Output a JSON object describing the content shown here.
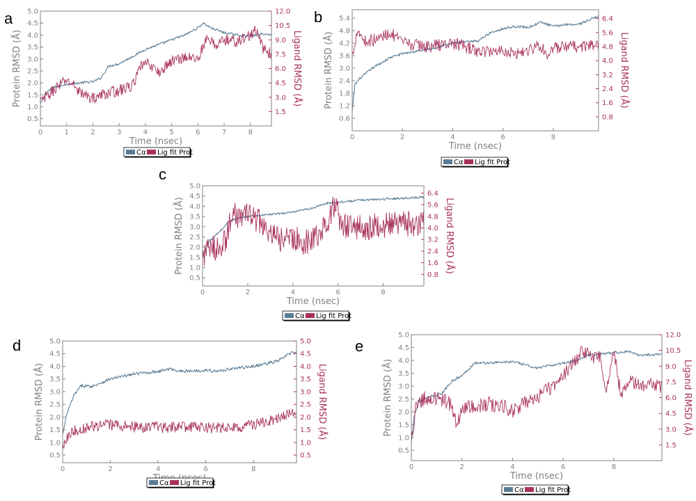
{
  "colors": {
    "protein": "#5a7d96",
    "ligand": "#a8315c",
    "axis": "#808080"
  },
  "chart_data": [
    {
      "panel": "a",
      "type": "line",
      "xlabel": "Time (nsec)",
      "ylabel": "Protein RMSD (Å)",
      "y2label": "Ligand RMSD (Å)",
      "xlim": [
        0,
        8.8
      ],
      "ylim": [
        0.2,
        5.0
      ],
      "y2lim": [
        0,
        12.0
      ],
      "xticks": [
        "0",
        "1",
        "2",
        "3",
        "4",
        "5",
        "6",
        "7",
        "8"
      ],
      "yticks": [
        "0.5",
        "1.0",
        "1.5",
        "2.0",
        "2.5",
        "3.0",
        "3.5",
        "4.0",
        "4.5",
        "5.0"
      ],
      "y2ticks": [
        "1.5",
        "3.0",
        "4.5",
        "6.0",
        "7.5",
        "9.0",
        "10.5",
        "12.0"
      ],
      "legend": [
        "Cα",
        "Lig fit Prot"
      ],
      "series": [
        {
          "key": "protein",
          "noise": 0.05,
          "x": [
            0,
            0.2,
            0.5,
            1,
            1.5,
            2,
            2.3,
            2.6,
            3,
            3.5,
            4,
            4.5,
            5,
            5.5,
            6,
            6.2,
            6.5,
            7,
            7.5,
            8,
            8.5,
            8.8
          ],
          "y": [
            1.1,
            1.6,
            1.8,
            1.95,
            2.0,
            2.05,
            2.2,
            2.7,
            2.8,
            3.1,
            3.4,
            3.6,
            3.8,
            4.0,
            4.3,
            4.5,
            4.3,
            4.1,
            4.0,
            3.95,
            4.05,
            4.0
          ]
        },
        {
          "key": "ligand",
          "noise": 0.6,
          "x": [
            0,
            0.3,
            0.6,
            1,
            1.3,
            1.6,
            2,
            2.5,
            3,
            3.5,
            3.9,
            4.2,
            4.5,
            5,
            5.5,
            6,
            6.3,
            6.7,
            7,
            7.5,
            8,
            8.2,
            8.5,
            8.8
          ],
          "y": [
            2.5,
            3.2,
            4.0,
            4.8,
            4.2,
            3.3,
            2.9,
            3.4,
            3.7,
            4.2,
            6.5,
            6.4,
            5.5,
            6.8,
            7.2,
            7.0,
            9.0,
            8.5,
            9.0,
            8.8,
            9.5,
            10.0,
            8.0,
            7.5
          ]
        }
      ]
    },
    {
      "panel": "b",
      "type": "line",
      "xlabel": "Time (nsec)",
      "ylabel": "Protein RMSD (Å)",
      "y2label": "Ligand RMSD (Å)",
      "xlim": [
        0,
        9.8
      ],
      "ylim": [
        0,
        5.8
      ],
      "y2lim": [
        0,
        6.9
      ],
      "xticks": [
        "0",
        "2",
        "4",
        "6",
        "8"
      ],
      "yticks": [
        "0.6",
        "1.2",
        "1.8",
        "2.4",
        "3.0",
        "3.6",
        "4.2",
        "4.8",
        "5.4"
      ],
      "y2ticks": [
        "0.8",
        "1.6",
        "2.4",
        "3.2",
        "4.0",
        "4.8",
        "5.6",
        "6.4"
      ],
      "legend": [
        "Cα",
        "Lig fit Prot"
      ],
      "series": [
        {
          "key": "protein",
          "noise": 0.06,
          "x": [
            0,
            0.1,
            0.3,
            0.8,
            1.5,
            2,
            3,
            4,
            5,
            5.5,
            6,
            6.5,
            7,
            7.5,
            8,
            8.5,
            9,
            9.8
          ],
          "y": [
            0.9,
            2.2,
            2.5,
            3.0,
            3.5,
            3.7,
            3.9,
            4.2,
            4.3,
            4.7,
            4.9,
            5.0,
            4.95,
            5.2,
            5.0,
            5.1,
            5.1,
            5.5
          ]
        },
        {
          "key": "ligand",
          "noise": 0.35,
          "x": [
            0,
            0.2,
            0.5,
            1,
            1.5,
            2,
            3,
            4,
            4.5,
            5,
            6,
            6.5,
            7,
            7.5,
            7.7,
            8,
            9,
            9.8
          ],
          "y": [
            4.2,
            5.8,
            5.1,
            5.2,
            5.6,
            5.0,
            4.8,
            5.0,
            4.8,
            4.5,
            4.6,
            4.4,
            4.6,
            4.9,
            4.3,
            4.7,
            4.8,
            4.9
          ]
        }
      ]
    },
    {
      "panel": "c",
      "type": "line",
      "xlabel": "Time (nsec)",
      "ylabel": "Protein RMSD (Å)",
      "y2label": "Ligand RMSD (Å)",
      "xlim": [
        0,
        9.8
      ],
      "ylim": [
        0.1,
        5.0
      ],
      "y2lim": [
        0,
        6.9
      ],
      "xticks": [
        "0",
        "2",
        "4",
        "6",
        "8"
      ],
      "yticks": [
        "0.5",
        "1.0",
        "1.5",
        "2.0",
        "2.5",
        "3.0",
        "3.5",
        "4.0",
        "4.5",
        "5.0"
      ],
      "y2ticks": [
        "0.8",
        "1.6",
        "2.4",
        "3.2",
        "4.0",
        "4.8",
        "5.6",
        "6.4"
      ],
      "legend": [
        "Cα",
        "Lig fit Prot"
      ],
      "series": [
        {
          "key": "protein",
          "noise": 0.05,
          "x": [
            0,
            0.3,
            0.8,
            1.2,
            2,
            3,
            4,
            5,
            5.5,
            6,
            7,
            8,
            9,
            9.8
          ],
          "y": [
            1.6,
            2.3,
            2.8,
            3.3,
            3.5,
            3.6,
            3.7,
            3.95,
            4.15,
            4.2,
            4.3,
            4.35,
            4.4,
            4.45
          ]
        },
        {
          "key": "ligand",
          "noise": 0.9,
          "x": [
            0,
            0.5,
            1,
            1.3,
            1.6,
            2,
            2.5,
            3,
            3.5,
            4,
            4.5,
            5,
            5.5,
            5.8,
            6.2,
            7,
            8,
            9,
            9.8
          ],
          "y": [
            2.2,
            2.6,
            3.0,
            5.0,
            4.8,
            4.9,
            4.5,
            3.4,
            3.2,
            3.3,
            3.0,
            3.4,
            4.2,
            5.6,
            4.2,
            4.0,
            4.2,
            4.3,
            4.3
          ]
        }
      ]
    },
    {
      "panel": "d",
      "type": "line",
      "xlabel": "Time (nsec)",
      "ylabel": "Protein RMSD (Å)",
      "y2label": "Ligand RMSD (Å)",
      "xlim": [
        0,
        9.8
      ],
      "ylim": [
        0.2,
        5.0
      ],
      "y2lim": [
        0.2,
        5.0
      ],
      "xticks": [
        "0",
        "2",
        "4",
        "6",
        "8"
      ],
      "yticks": [
        "0.5",
        "1.0",
        "1.5",
        "2.0",
        "2.5",
        "3.0",
        "3.5",
        "4.0",
        "4.5",
        "5.0"
      ],
      "y2ticks": [
        "0.5",
        "1.0",
        "1.5",
        "2.0",
        "2.5",
        "3.0",
        "3.5",
        "4.0",
        "4.5",
        "5.0"
      ],
      "legend": [
        "Cα",
        "Lig fit Prot"
      ],
      "series": [
        {
          "key": "protein",
          "noise": 0.06,
          "x": [
            0,
            0.2,
            0.5,
            0.8,
            1.2,
            2,
            3,
            4,
            4.5,
            5,
            6,
            6.5,
            7,
            8,
            9,
            9.6,
            9.8
          ],
          "y": [
            1.3,
            2.2,
            2.9,
            3.25,
            3.2,
            3.5,
            3.7,
            3.8,
            3.9,
            3.8,
            3.85,
            3.8,
            3.9,
            4.0,
            4.2,
            4.55,
            4.5
          ]
        },
        {
          "key": "ligand",
          "noise": 0.22,
          "x": [
            0,
            0.3,
            1,
            2,
            3,
            4,
            5,
            6,
            7,
            8,
            9,
            9.5,
            9.8
          ],
          "y": [
            0.9,
            1.4,
            1.6,
            1.7,
            1.6,
            1.6,
            1.6,
            1.6,
            1.55,
            1.7,
            1.9,
            2.1,
            2.2
          ]
        }
      ]
    },
    {
      "panel": "e",
      "type": "line",
      "xlabel": "Time (nsec)",
      "ylabel": "Protein RMSD (Å)",
      "y2label": "Ligand RMSD (Å)",
      "xlim": [
        0,
        9.9
      ],
      "ylim": [
        0.1,
        5.0
      ],
      "y2lim": [
        0,
        12.0
      ],
      "xticks": [
        "0",
        "2",
        "4",
        "6",
        "8"
      ],
      "yticks": [
        "0.5",
        "1.0",
        "1.5",
        "2.0",
        "2.5",
        "3.0",
        "3.5",
        "4.0",
        "4.5",
        "5.0"
      ],
      "y2ticks": [
        "1.5",
        "3.0",
        "4.5",
        "6.0",
        "7.5",
        "9.0",
        "10.5",
        "12.0"
      ],
      "legend": [
        "Cα",
        "Lig fit Prot"
      ],
      "series": [
        {
          "key": "protein",
          "noise": 0.05,
          "x": [
            0,
            0.1,
            0.3,
            0.8,
            1.2,
            1.6,
            2,
            2.5,
            3,
            4,
            5,
            5.5,
            6,
            6.5,
            7,
            8,
            8.5,
            9,
            9.9
          ],
          "y": [
            0.8,
            1.8,
            2.4,
            2.6,
            2.7,
            3.2,
            3.4,
            3.9,
            3.9,
            3.95,
            3.7,
            3.8,
            3.9,
            4.0,
            4.2,
            4.3,
            4.35,
            4.2,
            4.25
          ]
        },
        {
          "key": "ligand",
          "noise": 0.7,
          "x": [
            0,
            0.2,
            0.6,
            1,
            1.5,
            1.8,
            2,
            3,
            3.5,
            4,
            4.5,
            5,
            5.5,
            6,
            6.5,
            6.8,
            7,
            7.5,
            7.7,
            8,
            8.3,
            8.5,
            9,
            9.9
          ],
          "y": [
            1.5,
            5.5,
            6.0,
            6.0,
            5.5,
            3.5,
            5.0,
            5.4,
            5.2,
            4.8,
            5.5,
            6.0,
            7.0,
            8.0,
            9.5,
            10.5,
            10.0,
            9.8,
            6.5,
            10.3,
            6.0,
            7.5,
            7.2,
            7.2
          ]
        }
      ]
    }
  ]
}
